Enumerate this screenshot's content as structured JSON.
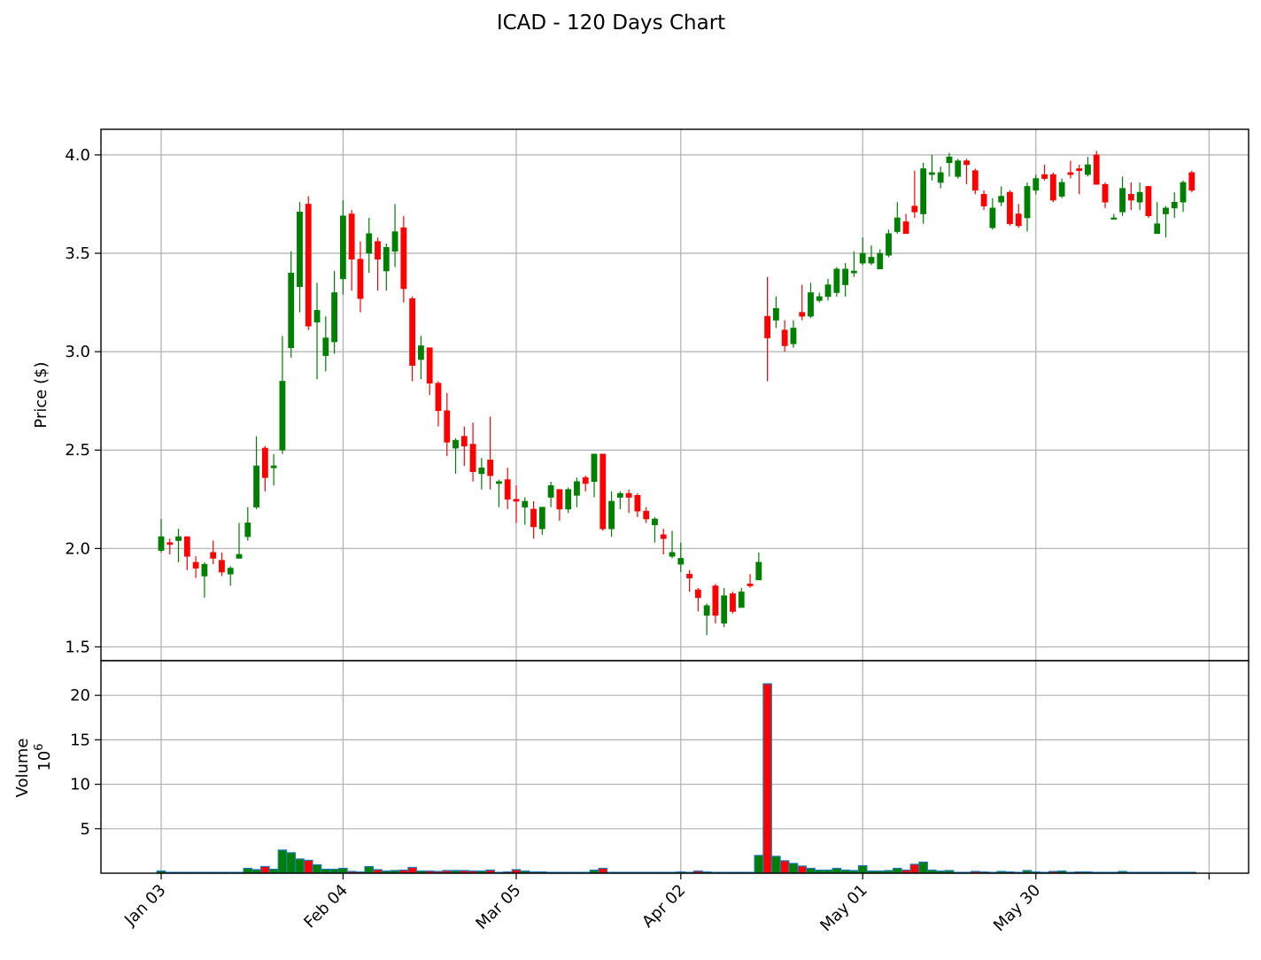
{
  "chart_data": {
    "type": "candlestick",
    "title": "ICAD - 120 Days Chart",
    "price_panel": {
      "ylabel": "Price ($)",
      "ylim": [
        1.43,
        4.13
      ],
      "yticks": [
        "1.5",
        "2.0",
        "2.5",
        "3.0",
        "3.5",
        "4.0"
      ],
      "grid": true
    },
    "volume_panel": {
      "ylabel": "Volume",
      "ylabel_multiplier": "10",
      "ylabel_exponent": "6",
      "ylim": [
        0,
        23.9
      ],
      "yticks": [
        "5",
        "10",
        "15",
        "20"
      ],
      "grid": true
    },
    "x_ticks": [
      "Jan 03",
      "Feb 04",
      "Mar 05",
      "Apr 02",
      "May 01",
      "May 30"
    ],
    "colors": {
      "up": "#008000",
      "down": "#ff0000",
      "volume_edge": "#1f77b4",
      "grid": "#b0b0b0"
    },
    "candles": [
      {
        "date": "Jan 03",
        "o": 1.99,
        "h": 2.15,
        "l": 1.98,
        "c": 2.06,
        "v": 0.25
      },
      {
        "date": "Jan 04",
        "o": 2.03,
        "h": 2.05,
        "l": 1.97,
        "c": 2.02,
        "v": 0.05
      },
      {
        "date": "Jan 05",
        "o": 2.04,
        "h": 2.1,
        "l": 1.93,
        "c": 2.06,
        "v": 0.05
      },
      {
        "date": "Jan 08",
        "o": 2.06,
        "h": 2.06,
        "l": 1.89,
        "c": 1.96,
        "v": 0.05
      },
      {
        "date": "Jan 09",
        "o": 1.93,
        "h": 1.96,
        "l": 1.85,
        "c": 1.9,
        "v": 0.05
      },
      {
        "date": "Jan 10",
        "o": 1.86,
        "h": 1.93,
        "l": 1.75,
        "c": 1.92,
        "v": 0.05
      },
      {
        "date": "Jan 11",
        "o": 1.98,
        "h": 2.04,
        "l": 1.92,
        "c": 1.95,
        "v": 0.05
      },
      {
        "date": "Jan 12",
        "o": 1.94,
        "h": 1.98,
        "l": 1.86,
        "c": 1.88,
        "v": 0.05
      },
      {
        "date": "Jan 16",
        "o": 1.87,
        "h": 1.91,
        "l": 1.81,
        "c": 1.9,
        "v": 0.05
      },
      {
        "date": "Jan 17",
        "o": 1.95,
        "h": 2.13,
        "l": 1.95,
        "c": 1.97,
        "v": 0.05
      },
      {
        "date": "Jan 18",
        "o": 2.06,
        "h": 2.21,
        "l": 2.04,
        "c": 2.13,
        "v": 0.55
      },
      {
        "date": "Jan 19",
        "o": 2.21,
        "h": 2.57,
        "l": 2.2,
        "c": 2.42,
        "v": 0.4
      },
      {
        "date": "Jan 22",
        "o": 2.51,
        "h": 2.52,
        "l": 2.29,
        "c": 2.36,
        "v": 0.75
      },
      {
        "date": "Jan 23",
        "o": 2.41,
        "h": 2.48,
        "l": 2.32,
        "c": 2.42,
        "v": 0.45
      },
      {
        "date": "Jan 24",
        "o": 2.5,
        "h": 3.08,
        "l": 2.48,
        "c": 2.85,
        "v": 2.6
      },
      {
        "date": "Jan 25",
        "o": 3.02,
        "h": 3.51,
        "l": 2.97,
        "c": 3.4,
        "v": 2.3
      },
      {
        "date": "Jan 26",
        "o": 3.33,
        "h": 3.76,
        "l": 3.2,
        "c": 3.71,
        "v": 1.6
      },
      {
        "date": "Jan 29",
        "o": 3.75,
        "h": 3.79,
        "l": 3.11,
        "c": 3.13,
        "v": 1.45
      },
      {
        "date": "Jan 30",
        "o": 3.15,
        "h": 3.35,
        "l": 2.86,
        "c": 3.21,
        "v": 0.95
      },
      {
        "date": "Jan 31",
        "o": 2.98,
        "h": 3.18,
        "l": 2.9,
        "c": 3.07,
        "v": 0.45
      },
      {
        "date": "Feb 01",
        "o": 3.05,
        "h": 3.41,
        "l": 2.99,
        "c": 3.3,
        "v": 0.45
      },
      {
        "date": "Feb 02",
        "o": 3.37,
        "h": 3.77,
        "l": 3.29,
        "c": 3.69,
        "v": 0.55
      },
      {
        "date": "Feb 05",
        "o": 3.7,
        "h": 3.72,
        "l": 3.31,
        "c": 3.47,
        "v": 0.2
      },
      {
        "date": "Feb 06",
        "o": 3.47,
        "h": 3.56,
        "l": 3.2,
        "c": 3.27,
        "v": 0.15
      },
      {
        "date": "Feb 07",
        "o": 3.5,
        "h": 3.68,
        "l": 3.4,
        "c": 3.6,
        "v": 0.75
      },
      {
        "date": "Feb 08",
        "o": 3.56,
        "h": 3.58,
        "l": 3.31,
        "c": 3.47,
        "v": 0.4
      },
      {
        "date": "Feb 09",
        "o": 3.41,
        "h": 3.55,
        "l": 3.31,
        "c": 3.53,
        "v": 0.25
      },
      {
        "date": "Feb 12",
        "o": 3.51,
        "h": 3.75,
        "l": 3.43,
        "c": 3.61,
        "v": 0.3
      },
      {
        "date": "Feb 13",
        "o": 3.63,
        "h": 3.69,
        "l": 3.25,
        "c": 3.32,
        "v": 0.35
      },
      {
        "date": "Feb 14",
        "o": 3.27,
        "h": 3.28,
        "l": 2.85,
        "c": 2.93,
        "v": 0.65
      },
      {
        "date": "Feb 15",
        "o": 2.96,
        "h": 3.08,
        "l": 2.86,
        "c": 3.03,
        "v": 0.25
      },
      {
        "date": "Feb 16",
        "o": 3.02,
        "h": 3.02,
        "l": 2.78,
        "c": 2.84,
        "v": 0.25
      },
      {
        "date": "Feb 20",
        "o": 2.84,
        "h": 2.85,
        "l": 2.62,
        "c": 2.7,
        "v": 0.2
      },
      {
        "date": "Feb 21",
        "o": 2.7,
        "h": 2.79,
        "l": 2.47,
        "c": 2.54,
        "v": 0.3
      },
      {
        "date": "Feb 22",
        "o": 2.51,
        "h": 2.56,
        "l": 2.38,
        "c": 2.55,
        "v": 0.3
      },
      {
        "date": "Feb 23",
        "o": 2.57,
        "h": 2.62,
        "l": 2.42,
        "c": 2.52,
        "v": 0.3
      },
      {
        "date": "Feb 26",
        "o": 2.53,
        "h": 2.64,
        "l": 2.34,
        "c": 2.39,
        "v": 0.25
      },
      {
        "date": "Feb 27",
        "o": 2.38,
        "h": 2.46,
        "l": 2.3,
        "c": 2.41,
        "v": 0.25
      },
      {
        "date": "Feb 28",
        "o": 2.45,
        "h": 2.67,
        "l": 2.3,
        "c": 2.37,
        "v": 0.35
      },
      {
        "date": "Mar 01",
        "o": 2.33,
        "h": 2.35,
        "l": 2.21,
        "c": 2.34,
        "v": 0.05
      },
      {
        "date": "Mar 04",
        "o": 2.35,
        "h": 2.41,
        "l": 2.2,
        "c": 2.25,
        "v": 0.15
      },
      {
        "date": "Mar 05",
        "o": 2.25,
        "h": 2.32,
        "l": 2.13,
        "c": 2.24,
        "v": 0.4
      },
      {
        "date": "Mar 06",
        "o": 2.21,
        "h": 2.26,
        "l": 2.12,
        "c": 2.24,
        "v": 0.25
      },
      {
        "date": "Mar 07",
        "o": 2.2,
        "h": 2.24,
        "l": 2.05,
        "c": 2.11,
        "v": 0.15
      },
      {
        "date": "Mar 08",
        "o": 2.1,
        "h": 2.21,
        "l": 2.07,
        "c": 2.21,
        "v": 0.15
      },
      {
        "date": "Mar 11",
        "o": 2.26,
        "h": 2.34,
        "l": 2.21,
        "c": 2.32,
        "v": 0.1
      },
      {
        "date": "Mar 12",
        "o": 2.3,
        "h": 2.3,
        "l": 2.14,
        "c": 2.2,
        "v": 0.1
      },
      {
        "date": "Mar 13",
        "o": 2.2,
        "h": 2.31,
        "l": 2.18,
        "c": 2.3,
        "v": 0.1
      },
      {
        "date": "Mar 14",
        "o": 2.27,
        "h": 2.36,
        "l": 2.21,
        "c": 2.34,
        "v": 0.05
      },
      {
        "date": "Mar 15",
        "o": 2.36,
        "h": 2.37,
        "l": 2.29,
        "c": 2.33,
        "v": 0.05
      },
      {
        "date": "Mar 18",
        "o": 2.34,
        "h": 2.48,
        "l": 2.26,
        "c": 2.48,
        "v": 0.35
      },
      {
        "date": "Mar 19",
        "o": 2.48,
        "h": 2.48,
        "l": 2.09,
        "c": 2.1,
        "v": 0.55
      },
      {
        "date": "Mar 20",
        "o": 2.1,
        "h": 2.29,
        "l": 2.06,
        "c": 2.24,
        "v": 0.1
      },
      {
        "date": "Mar 21",
        "o": 2.26,
        "h": 2.29,
        "l": 2.2,
        "c": 2.28,
        "v": 0.05
      },
      {
        "date": "Mar 22",
        "o": 2.28,
        "h": 2.3,
        "l": 2.18,
        "c": 2.26,
        "v": 0.05
      },
      {
        "date": "Mar 25",
        "o": 2.27,
        "h": 2.28,
        "l": 2.16,
        "c": 2.19,
        "v": 0.05
      },
      {
        "date": "Mar 26",
        "o": 2.19,
        "h": 2.21,
        "l": 2.13,
        "c": 2.15,
        "v": 0.05
      },
      {
        "date": "Mar 27",
        "o": 2.12,
        "h": 2.16,
        "l": 2.03,
        "c": 2.15,
        "v": 0.05
      },
      {
        "date": "Mar 28",
        "o": 2.07,
        "h": 2.1,
        "l": 1.97,
        "c": 2.05,
        "v": 0.05
      },
      {
        "date": "Apr 01",
        "o": 1.96,
        "h": 2.09,
        "l": 1.95,
        "c": 1.98,
        "v": 0.1
      },
      {
        "date": "Apr 02",
        "o": 1.92,
        "h": 2.03,
        "l": 1.88,
        "c": 1.95,
        "v": 0.15
      },
      {
        "date": "Apr 03",
        "o": 1.87,
        "h": 1.89,
        "l": 1.78,
        "c": 1.85,
        "v": 0.05
      },
      {
        "date": "Apr 04",
        "o": 1.79,
        "h": 1.8,
        "l": 1.68,
        "c": 1.75,
        "v": 0.25
      },
      {
        "date": "Apr 05",
        "o": 1.66,
        "h": 1.72,
        "l": 1.56,
        "c": 1.71,
        "v": 0.15
      },
      {
        "date": "Apr 08",
        "o": 1.81,
        "h": 1.82,
        "l": 1.62,
        "c": 1.66,
        "v": 0.05
      },
      {
        "date": "Apr 09",
        "o": 1.62,
        "h": 1.8,
        "l": 1.6,
        "c": 1.76,
        "v": 0.05
      },
      {
        "date": "Apr 10",
        "o": 1.77,
        "h": 1.78,
        "l": 1.67,
        "c": 1.68,
        "v": 0.05
      },
      {
        "date": "Apr 11",
        "o": 1.7,
        "h": 1.8,
        "l": 1.7,
        "c": 1.78,
        "v": 0.05
      },
      {
        "date": "Apr 12",
        "o": 1.82,
        "h": 1.87,
        "l": 1.8,
        "c": 1.81,
        "v": 0.05
      },
      {
        "date": "Apr 15",
        "o": 1.84,
        "h": 1.98,
        "l": 1.84,
        "c": 1.93,
        "v": 2.0
      },
      {
        "date": "Apr 16",
        "o": 3.18,
        "h": 3.38,
        "l": 2.85,
        "c": 3.07,
        "v": 21.3
      },
      {
        "date": "Apr 17",
        "o": 3.16,
        "h": 3.28,
        "l": 3.12,
        "c": 3.22,
        "v": 1.9
      },
      {
        "date": "Apr 18",
        "o": 3.11,
        "h": 3.16,
        "l": 3.0,
        "c": 3.03,
        "v": 1.4
      },
      {
        "date": "Apr 19",
        "o": 3.04,
        "h": 3.16,
        "l": 3.02,
        "c": 3.12,
        "v": 1.1
      },
      {
        "date": "Apr 22",
        "o": 3.2,
        "h": 3.34,
        "l": 3.16,
        "c": 3.18,
        "v": 0.8
      },
      {
        "date": "Apr 23",
        "o": 3.18,
        "h": 3.35,
        "l": 3.17,
        "c": 3.3,
        "v": 0.55
      },
      {
        "date": "Apr 24",
        "o": 3.26,
        "h": 3.3,
        "l": 3.25,
        "c": 3.28,
        "v": 0.35
      },
      {
        "date": "Apr 25",
        "o": 3.28,
        "h": 3.37,
        "l": 3.26,
        "c": 3.34,
        "v": 0.35
      },
      {
        "date": "Apr 26",
        "o": 3.3,
        "h": 3.43,
        "l": 3.28,
        "c": 3.42,
        "v": 0.55
      },
      {
        "date": "Apr 29",
        "o": 3.34,
        "h": 3.45,
        "l": 3.28,
        "c": 3.42,
        "v": 0.35
      },
      {
        "date": "Apr 30",
        "o": 3.4,
        "h": 3.51,
        "l": 3.38,
        "c": 3.41,
        "v": 0.3
      },
      {
        "date": "May 01",
        "o": 3.45,
        "h": 3.58,
        "l": 3.44,
        "c": 3.5,
        "v": 0.85
      },
      {
        "date": "May 02",
        "o": 3.45,
        "h": 3.54,
        "l": 3.44,
        "c": 3.48,
        "v": 0.25
      },
      {
        "date": "May 03",
        "o": 3.42,
        "h": 3.52,
        "l": 3.42,
        "c": 3.5,
        "v": 0.25
      },
      {
        "date": "May 06",
        "o": 3.49,
        "h": 3.62,
        "l": 3.48,
        "c": 3.6,
        "v": 0.3
      },
      {
        "date": "May 07",
        "o": 3.61,
        "h": 3.76,
        "l": 3.6,
        "c": 3.68,
        "v": 0.55
      },
      {
        "date": "May 08",
        "o": 3.66,
        "h": 3.7,
        "l": 3.6,
        "c": 3.6,
        "v": 0.35
      },
      {
        "date": "May 09",
        "o": 3.74,
        "h": 3.92,
        "l": 3.68,
        "c": 3.71,
        "v": 1.0
      },
      {
        "date": "May 10",
        "o": 3.7,
        "h": 3.96,
        "l": 3.65,
        "c": 3.93,
        "v": 1.25
      },
      {
        "date": "May 13",
        "o": 3.9,
        "h": 4.0,
        "l": 3.87,
        "c": 3.91,
        "v": 0.35
      },
      {
        "date": "May 14",
        "o": 3.86,
        "h": 3.94,
        "l": 3.83,
        "c": 3.91,
        "v": 0.25
      },
      {
        "date": "May 15",
        "o": 3.96,
        "h": 4.01,
        "l": 3.89,
        "c": 3.99,
        "v": 0.3
      },
      {
        "date": "May 16",
        "o": 3.89,
        "h": 3.98,
        "l": 3.88,
        "c": 3.97,
        "v": 0.05
      },
      {
        "date": "May 17",
        "o": 3.97,
        "h": 3.98,
        "l": 3.85,
        "c": 3.95,
        "v": 0.05
      },
      {
        "date": "May 20",
        "o": 3.92,
        "h": 3.93,
        "l": 3.8,
        "c": 3.82,
        "v": 0.2
      },
      {
        "date": "May 21",
        "o": 3.8,
        "h": 3.82,
        "l": 3.72,
        "c": 3.74,
        "v": 0.15
      },
      {
        "date": "May 22",
        "o": 3.63,
        "h": 3.78,
        "l": 3.62,
        "c": 3.73,
        "v": 0.05
      },
      {
        "date": "May 23",
        "o": 3.76,
        "h": 3.84,
        "l": 3.74,
        "c": 3.79,
        "v": 0.2
      },
      {
        "date": "May 24",
        "o": 3.81,
        "h": 3.82,
        "l": 3.64,
        "c": 3.65,
        "v": 0.15
      },
      {
        "date": "May 28",
        "o": 3.7,
        "h": 3.75,
        "l": 3.63,
        "c": 3.64,
        "v": 0.05
      },
      {
        "date": "May 29",
        "o": 3.68,
        "h": 3.86,
        "l": 3.61,
        "c": 3.84,
        "v": 0.3
      },
      {
        "date": "May 30",
        "o": 3.82,
        "h": 3.9,
        "l": 3.8,
        "c": 3.88,
        "v": 0.15
      },
      {
        "date": "May 31",
        "o": 3.9,
        "h": 3.95,
        "l": 3.87,
        "c": 3.88,
        "v": 0.05
      },
      {
        "date": "Jun 03",
        "o": 3.9,
        "h": 3.91,
        "l": 3.76,
        "c": 3.77,
        "v": 0.2
      },
      {
        "date": "Jun 04",
        "o": 3.79,
        "h": 3.88,
        "l": 3.78,
        "c": 3.86,
        "v": 0.25
      },
      {
        "date": "Jun 05",
        "o": 3.91,
        "h": 3.97,
        "l": 3.88,
        "c": 3.9,
        "v": 0.05
      },
      {
        "date": "Jun 06",
        "o": 3.93,
        "h": 3.95,
        "l": 3.8,
        "c": 3.92,
        "v": 0.15
      },
      {
        "date": "Jun 07",
        "o": 3.9,
        "h": 3.99,
        "l": 3.89,
        "c": 3.95,
        "v": 0.15
      },
      {
        "date": "Jun 10",
        "o": 4.0,
        "h": 4.02,
        "l": 3.85,
        "c": 3.85,
        "v": 0.05
      },
      {
        "date": "Jun 11",
        "o": 3.85,
        "h": 3.86,
        "l": 3.73,
        "c": 3.76,
        "v": 0.05
      },
      {
        "date": "Jun 12",
        "o": 3.68,
        "h": 3.7,
        "l": 3.68,
        "c": 3.68,
        "v": 0.05
      },
      {
        "date": "Jun 13",
        "o": 3.71,
        "h": 3.89,
        "l": 3.69,
        "c": 3.83,
        "v": 0.2
      },
      {
        "date": "Jun 14",
        "o": 3.8,
        "h": 3.86,
        "l": 3.72,
        "c": 3.77,
        "v": 0.1
      },
      {
        "date": "Jun 17",
        "o": 3.76,
        "h": 3.86,
        "l": 3.72,
        "c": 3.81,
        "v": 0.05
      },
      {
        "date": "Jun 18",
        "o": 3.84,
        "h": 3.84,
        "l": 3.68,
        "c": 3.69,
        "v": 0.05
      },
      {
        "date": "Jun 20",
        "o": 3.6,
        "h": 3.76,
        "l": 3.6,
        "c": 3.65,
        "v": 0.05
      },
      {
        "date": "Jun 21",
        "o": 3.7,
        "h": 3.74,
        "l": 3.58,
        "c": 3.73,
        "v": 0.05
      },
      {
        "date": "Jun 24",
        "o": 3.73,
        "h": 3.81,
        "l": 3.68,
        "c": 3.76,
        "v": 0.05
      },
      {
        "date": "Jun 25",
        "o": 3.76,
        "h": 3.87,
        "l": 3.71,
        "c": 3.86,
        "v": 0.05
      },
      {
        "date": "Jun 26",
        "o": 3.91,
        "h": 3.92,
        "l": 3.81,
        "c": 3.82,
        "v": 0.05
      }
    ]
  }
}
